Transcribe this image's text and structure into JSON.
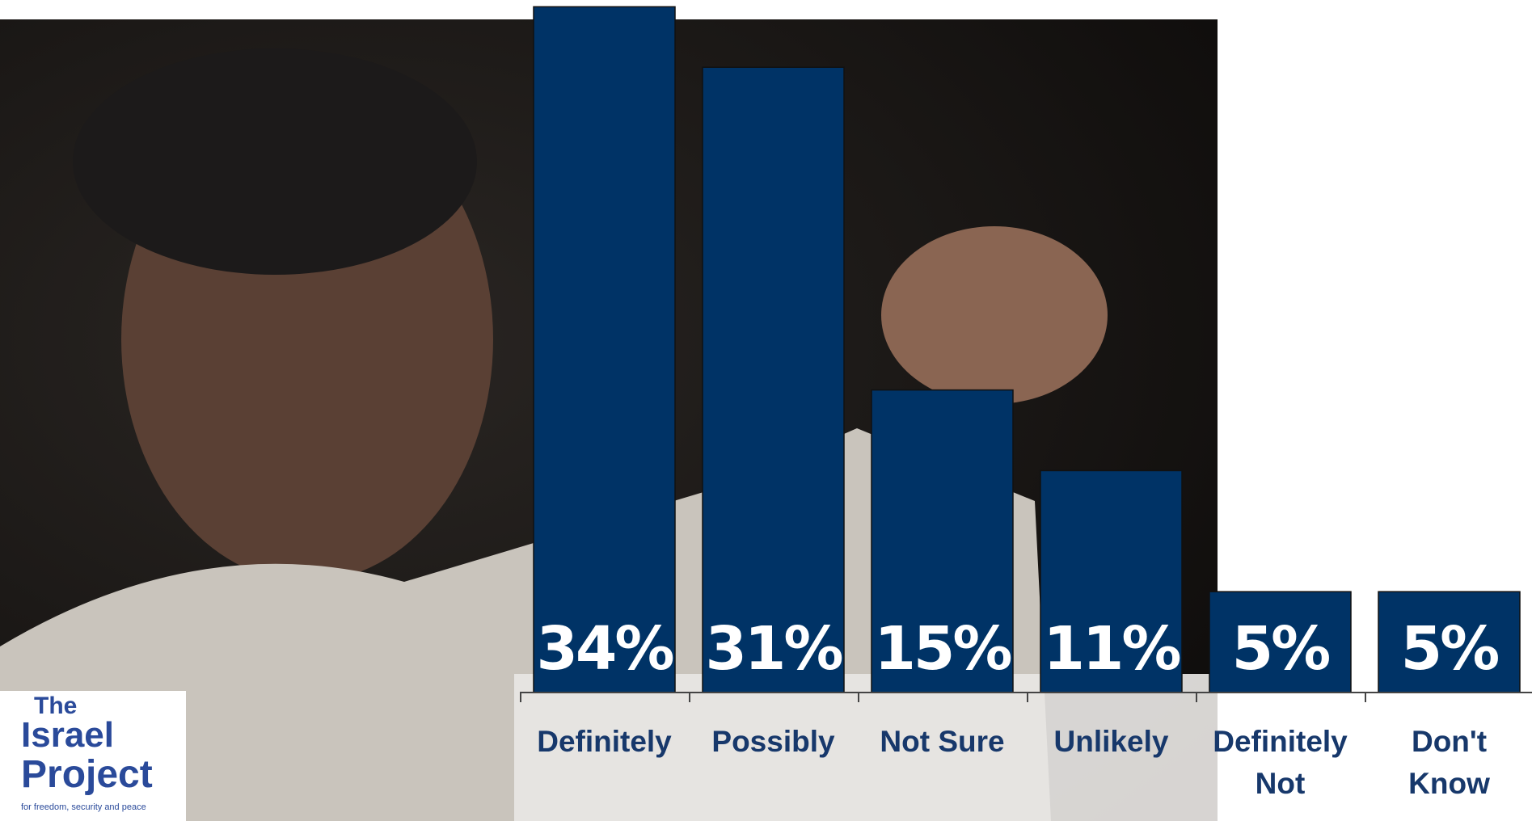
{
  "chart_data": {
    "type": "bar",
    "categories": [
      "Definitely",
      "Possibly",
      "Not Sure",
      "Unlikely",
      "Definitely Not",
      "Don't Know"
    ],
    "values": [
      34,
      31,
      15,
      11,
      5,
      5
    ],
    "value_labels": [
      "34%",
      "31%",
      "15%",
      "11%",
      "5%",
      "5%"
    ],
    "color": "#003366"
  },
  "logo": {
    "line1": "The",
    "line2": "Israel",
    "line3": "Project",
    "tagline": "for freedom, security and peace"
  }
}
